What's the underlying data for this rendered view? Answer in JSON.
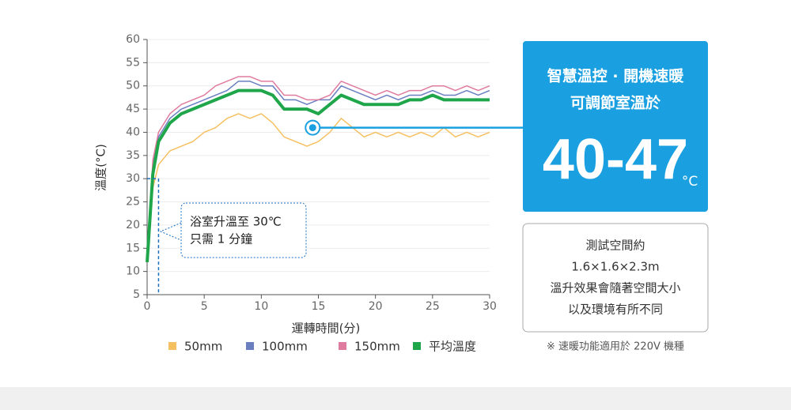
{
  "chart_data": {
    "type": "line",
    "x_label": "運轉時間(分)",
    "y_label": "溫度(°C)",
    "x": [
      0,
      0.5,
      1,
      2,
      3,
      4,
      5,
      6,
      7,
      8,
      9,
      10,
      11,
      12,
      13,
      14,
      15,
      16,
      17,
      18,
      19,
      20,
      21,
      22,
      23,
      24,
      25,
      26,
      27,
      28,
      29,
      30
    ],
    "series": [
      {
        "name": "50mm",
        "color": "#f5c060",
        "values": [
          12,
          28,
          33,
          36,
          37,
          38,
          40,
          41,
          43,
          44,
          43,
          44,
          42,
          39,
          38,
          37,
          38,
          40,
          43,
          41,
          39,
          40,
          39,
          40,
          39,
          40,
          39,
          41,
          39,
          40,
          39,
          40
        ]
      },
      {
        "name": "100mm",
        "color": "#6a7fc0",
        "values": [
          12,
          33,
          39,
          43,
          45,
          46,
          47,
          48,
          49,
          51,
          51,
          50,
          50,
          47,
          47,
          46,
          47,
          47,
          50,
          49,
          48,
          47,
          48,
          47,
          48,
          48,
          49,
          48,
          48,
          49,
          48,
          49
        ]
      },
      {
        "name": "150mm",
        "color": "#e07ba0",
        "values": [
          12,
          34,
          40,
          44,
          46,
          47,
          48,
          50,
          51,
          52,
          52,
          51,
          51,
          48,
          48,
          47,
          47,
          48,
          51,
          50,
          49,
          48,
          49,
          48,
          49,
          49,
          50,
          50,
          49,
          50,
          49,
          50
        ]
      },
      {
        "name": "平均溫度",
        "color": "#1fa64a",
        "values": [
          12,
          31,
          38,
          42,
          44,
          45,
          46,
          47,
          48,
          49,
          49,
          49,
          48,
          45,
          45,
          45,
          44,
          46,
          48,
          47,
          46,
          46,
          46,
          46,
          47,
          47,
          48,
          47,
          47,
          47,
          47,
          47
        ]
      }
    ],
    "xlim": [
      0,
      30
    ],
    "xticks": [
      0,
      5,
      10,
      15,
      20,
      25,
      30
    ],
    "ylim": [
      5,
      60
    ],
    "yticks": [
      5,
      10,
      15,
      20,
      25,
      30,
      35,
      40,
      45,
      50,
      55,
      60
    ],
    "grid": true,
    "highlight": {
      "x": 1,
      "y": 30
    },
    "callout_lines": [
      "浴室升溫至 30℃",
      "只需 1 分鐘"
    ],
    "pointer": {
      "x": 14.5,
      "y": 41
    }
  },
  "panel": {
    "title_lines": [
      "智慧溫控 · 開機速暖",
      "可調節室溫於"
    ],
    "range": "40-47",
    "unit": "°C"
  },
  "note": {
    "lines": [
      "測試空間約",
      "1.6×1.6×2.3m",
      "溫升效果會隨著空間大小",
      "以及環境有所不同"
    ]
  },
  "footnote": "※ 速暖功能適用於 220V 機種"
}
